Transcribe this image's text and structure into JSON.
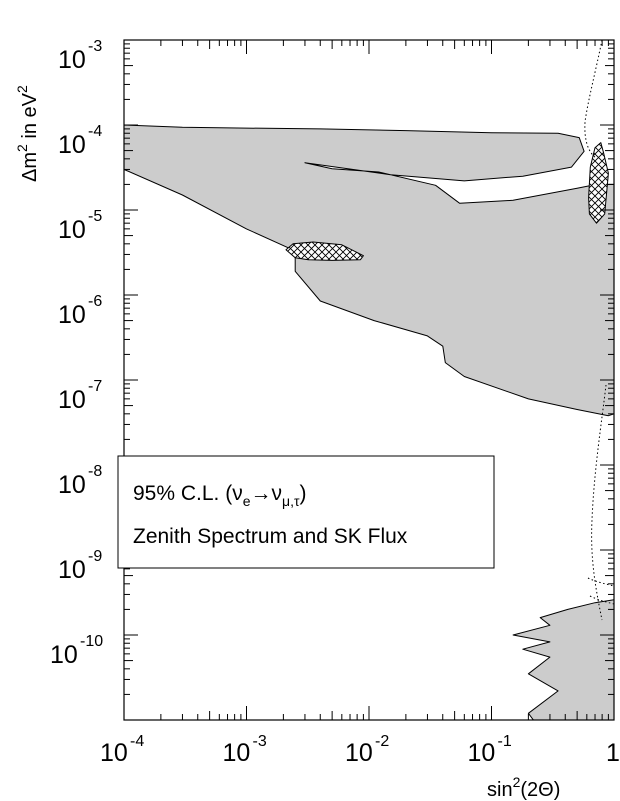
{
  "chart_data": {
    "type": "contour",
    "xlabel": "sin²(2Θ)",
    "ylabel": "Δm² in eV²",
    "x_scale": "log",
    "y_scale": "log",
    "xlim": [
      0.0001,
      1
    ],
    "ylim": [
      1e-11,
      0.001
    ],
    "x_ticks": [
      {
        "value": 0.0001,
        "base": "10",
        "exp": "-4"
      },
      {
        "value": 0.001,
        "base": "10",
        "exp": "-3"
      },
      {
        "value": 0.01,
        "base": "10",
        "exp": "-2"
      },
      {
        "value": 0.1,
        "base": "10",
        "exp": "-1"
      },
      {
        "value": 1,
        "base": "1",
        "exp": ""
      }
    ],
    "y_ticks": [
      {
        "value": 0.001,
        "base": "10",
        "exp": "-3"
      },
      {
        "value": 0.0001,
        "base": "10",
        "exp": "-4"
      },
      {
        "value": 1e-05,
        "base": "10",
        "exp": "-5"
      },
      {
        "value": 1e-06,
        "base": "10",
        "exp": "-6"
      },
      {
        "value": 1e-07,
        "base": "10",
        "exp": "-7"
      },
      {
        "value": 1e-08,
        "base": "10",
        "exp": "-8"
      },
      {
        "value": 1e-09,
        "base": "10",
        "exp": "-9"
      },
      {
        "value": 1e-10,
        "base": "10",
        "exp": "-10"
      }
    ],
    "grid": false,
    "legend_position": "lower-left",
    "legend_lines": [
      "95% C.L. (ν",
      "e",
      "→ν",
      "μ,τ",
      ")",
      "Zenith Spectrum and SK Flux"
    ],
    "colors": {
      "allowed_fill": "#cccccc",
      "outline": "#000000",
      "background": "#ffffff"
    },
    "regions": [
      {
        "name": "Allowed region (MSW large + small mixing)",
        "style": "grey-fill",
        "points": [
          [
            0.0001,
            0.0001
          ],
          [
            0.0003,
            9.4e-05
          ],
          [
            0.001,
            9.2e-05
          ],
          [
            0.004,
            9e-05
          ],
          [
            0.02,
            8.6e-05
          ],
          [
            0.1,
            8.1e-05
          ],
          [
            0.35,
            8e-05
          ],
          [
            0.52,
            7.1e-05
          ],
          [
            0.57,
            4.9e-05
          ],
          [
            0.45,
            3.2e-05
          ],
          [
            0.18,
            2.5e-05
          ],
          [
            0.06,
            2.2e-05
          ],
          [
            0.015,
            2.6e-05
          ],
          [
            0.003,
            3.6e-05
          ],
          [
            0.005,
            3.05e-05
          ],
          [
            0.012,
            2.8e-05
          ],
          [
            0.035,
            1.95e-05
          ],
          [
            0.055,
            1.2e-05
          ],
          [
            0.15,
            1.3e-05
          ],
          [
            0.5,
            1.8e-05
          ],
          [
            0.72,
            2e-05
          ],
          [
            1,
            2e-05
          ],
          [
            1,
            4e-08
          ],
          [
            0.9,
            3.8e-08
          ],
          [
            0.5,
            4.5e-08
          ],
          [
            0.2,
            6e-08
          ],
          [
            0.06,
            1.1e-07
          ],
          [
            0.042,
            1.6e-07
          ],
          [
            0.04,
            2.5e-07
          ],
          [
            0.03,
            3.3e-07
          ],
          [
            0.011,
            5e-07
          ],
          [
            0.004,
            8.5e-07
          ],
          [
            0.0025,
            1.9e-06
          ],
          [
            0.0025,
            3.3e-06
          ],
          [
            0.001,
            6e-06
          ],
          [
            0.0003,
            1.5e-05
          ],
          [
            0.0001,
            3e-05
          ]
        ]
      },
      {
        "name": "Allowed region (low Δm²)",
        "style": "grey-fill",
        "points": [
          [
            0.65,
            1e-11
          ],
          [
            0.22,
            1e-11
          ],
          [
            0.2,
            1.2e-11
          ],
          [
            0.35,
            2.2e-11
          ],
          [
            0.2,
            3.5e-11
          ],
          [
            0.3,
            5.5e-11
          ],
          [
            0.18,
            6.8e-11
          ],
          [
            0.3,
            8.3e-11
          ],
          [
            0.15,
            1e-10
          ],
          [
            0.3,
            1.3e-10
          ],
          [
            0.25,
            1.6e-10
          ],
          [
            0.42,
            2e-10
          ],
          [
            0.7,
            2.4e-10
          ],
          [
            1,
            2.6e-10
          ],
          [
            1,
            1e-11
          ]
        ]
      },
      {
        "name": "Hatched region (small mixing angle)",
        "style": "cross-hatch",
        "points": [
          [
            0.0021,
            3.4e-06
          ],
          [
            0.0024,
            4e-06
          ],
          [
            0.0035,
            4.2e-06
          ],
          [
            0.006,
            3.9e-06
          ],
          [
            0.009,
            2.9e-06
          ],
          [
            0.0085,
            2.6e-06
          ],
          [
            0.005,
            2.55e-06
          ],
          [
            0.0032,
            2.6e-06
          ],
          [
            0.0025,
            2.75e-06
          ]
        ]
      },
      {
        "name": "Hatched region (large mixing angle)",
        "style": "cross-hatch",
        "points": [
          [
            0.64,
            3.2e-05
          ],
          [
            0.7,
            5.4e-05
          ],
          [
            0.78,
            6.2e-05
          ],
          [
            0.82,
            4.8e-05
          ],
          [
            0.9,
            2.7e-05
          ],
          [
            0.84,
            9e-06
          ],
          [
            0.72,
            7e-06
          ],
          [
            0.63,
            9e-06
          ],
          [
            0.62,
            1.4e-05
          ]
        ]
      }
    ]
  }
}
